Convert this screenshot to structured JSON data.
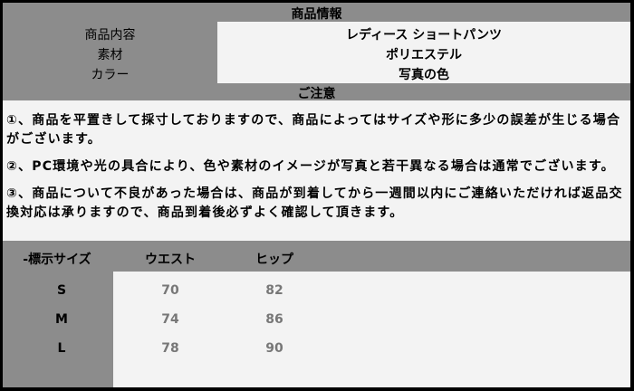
{
  "info": {
    "title": "商品情報",
    "rows": [
      {
        "label": "商品内容",
        "value": "レディース ショートパンツ"
      },
      {
        "label": "素材",
        "value": "ポリエステル"
      },
      {
        "label": "カラー",
        "value": "写真の色"
      }
    ]
  },
  "notice": {
    "title": "ご注意",
    "items": [
      "①、商品を平置きして採寸しておりますので、商品によってはサイズや形に多少の誤差が生じる場合がございます。",
      "②、PC環境や光の具合により、色や素材のイメージが写真と若干異なる場合は通常でございます。",
      "③、商品について不良があった場合は、商品が到着してから一週間以内にご連絡いただければ返品交換対応は承りますので、商品到着後必ずよく確認して頂きます。"
    ]
  },
  "sizes": {
    "headers": [
      "-標示サイズ",
      "ウエスト",
      "ヒップ"
    ],
    "rows": [
      {
        "size": "S",
        "waist": "70",
        "hip": "82"
      },
      {
        "size": "M",
        "waist": "74",
        "hip": "86"
      },
      {
        "size": "L",
        "waist": "78",
        "hip": "90"
      }
    ]
  }
}
